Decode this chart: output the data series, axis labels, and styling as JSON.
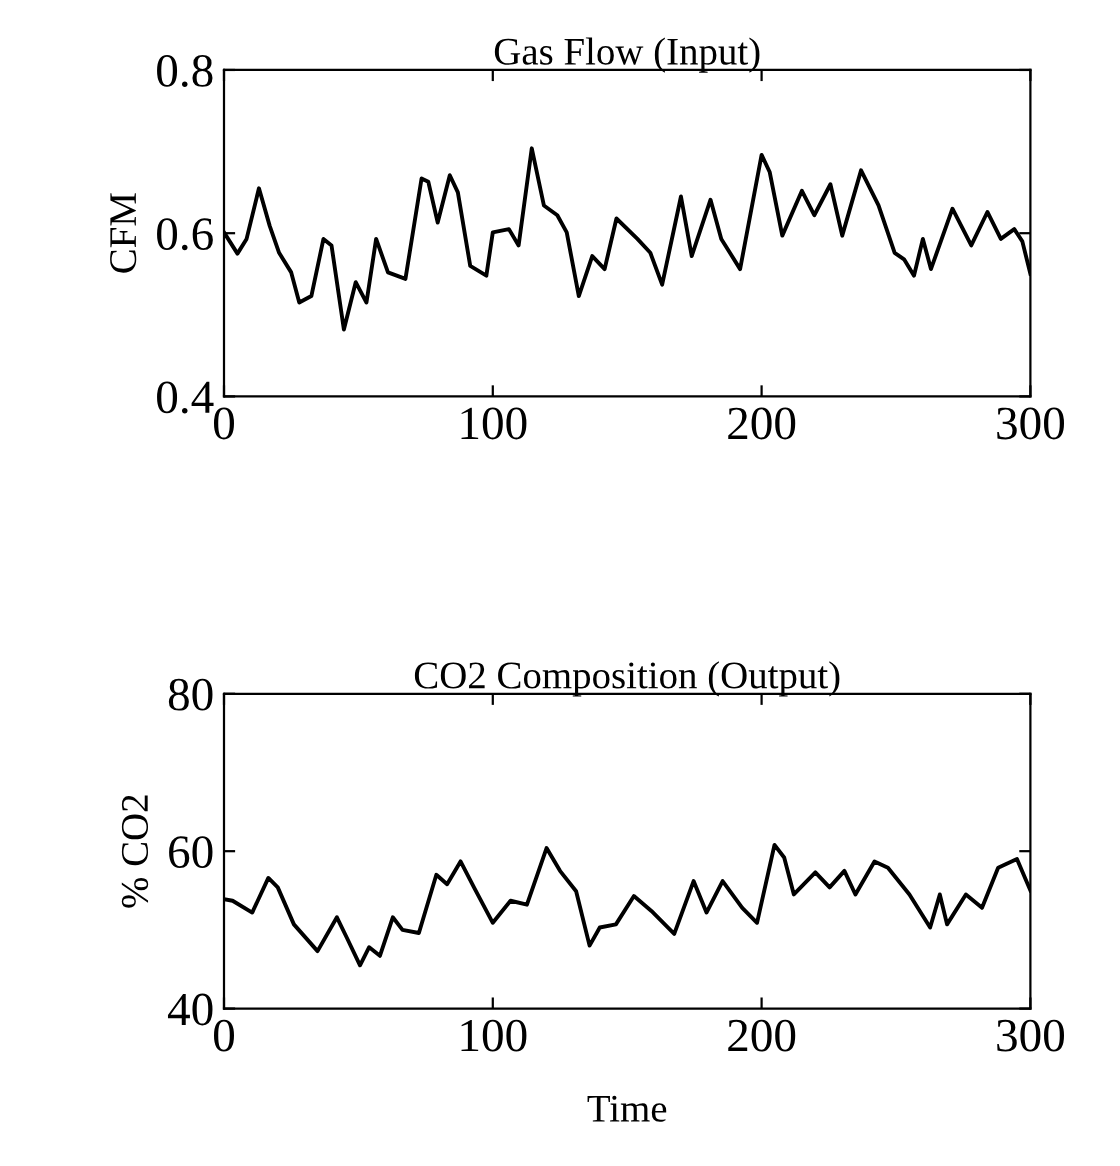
{
  "chart_data": [
    {
      "type": "line",
      "title": "Gas Flow (Input)",
      "ylabel": "CFM",
      "xlim": [
        0,
        300
      ],
      "ylim": [
        0.4,
        0.8
      ],
      "xticks": [
        0,
        100,
        200,
        300
      ],
      "yticks": [
        0.4,
        0.6,
        0.8
      ],
      "grid": false,
      "marker": "none",
      "line_style": "solid",
      "series": [
        {
          "color": "#000000",
          "x": [
            0,
            5,
            8.4,
            13,
            17,
            20.5,
            25,
            28,
            32.5,
            37,
            40,
            44.6,
            49,
            53,
            56.6,
            61,
            67.5,
            73.5,
            76,
            79.5,
            84,
            87,
            91.6,
            97.6,
            100,
            106,
            109.6,
            114.5,
            119,
            124,
            127.5,
            132,
            137,
            141.6,
            146,
            153.8,
            158.6,
            163,
            170,
            174,
            181,
            185,
            192,
            200,
            203,
            207.7,
            215,
            219.6,
            225.6,
            230,
            237,
            243.5,
            249.5,
            253,
            256.7,
            260,
            263,
            271,
            278,
            284,
            289,
            294,
            297,
            300
          ],
          "values": [
            0.601,
            0.575,
            0.593,
            0.655,
            0.609,
            0.576,
            0.552,
            0.515,
            0.523,
            0.593,
            0.585,
            0.482,
            0.54,
            0.515,
            0.593,
            0.552,
            0.544,
            0.667,
            0.663,
            0.613,
            0.671,
            0.65,
            0.56,
            0.548,
            0.601,
            0.605,
            0.585,
            0.704,
            0.634,
            0.622,
            0.601,
            0.523,
            0.572,
            0.556,
            0.618,
            0.593,
            0.576,
            0.537,
            0.645,
            0.572,
            0.641,
            0.593,
            0.556,
            0.696,
            0.675,
            0.597,
            0.652,
            0.622,
            0.66,
            0.597,
            0.677,
            0.634,
            0.576,
            0.568,
            0.548,
            0.593,
            0.556,
            0.63,
            0.585,
            0.626,
            0.593,
            0.605,
            0.59,
            0.55
          ]
        }
      ]
    },
    {
      "type": "line",
      "title": "CO2 Composition (Output)",
      "ylabel": "% CO2",
      "xlabel": "Time",
      "xlim": [
        0,
        300
      ],
      "ylim": [
        40,
        80
      ],
      "xticks": [
        0,
        100,
        200,
        300
      ],
      "yticks": [
        40,
        60,
        80
      ],
      "grid": false,
      "marker": "none",
      "line_style": "solid",
      "series": [
        {
          "color": "#000000",
          "x": [
            0,
            3.2,
            10.5,
            16.5,
            20,
            26,
            34.8,
            42,
            45.7,
            50.6,
            54,
            58,
            62.8,
            66.4,
            72.5,
            79,
            83,
            88,
            93,
            100,
            106.6,
            112.7,
            120,
            125,
            131,
            136,
            139.8,
            145.8,
            152.5,
            159,
            167.5,
            174.7,
            179.5,
            185.5,
            192.8,
            198.3,
            204.8,
            208.4,
            212,
            220,
            225.3,
            230.8,
            234.9,
            242,
            247,
            255,
            262.7,
            266.3,
            269,
            276,
            282,
            288,
            295,
            300
          ],
          "values": [
            53.9,
            53.7,
            52.2,
            56.6,
            55.4,
            50.7,
            47.3,
            51.6,
            49.0,
            45.5,
            47.8,
            46.7,
            51.6,
            50.0,
            49.6,
            57.0,
            55.8,
            58.7,
            55.4,
            50.9,
            53.7,
            53.2,
            60.4,
            57.5,
            54.9,
            48.0,
            50.3,
            50.7,
            54.3,
            52.4,
            49.5,
            56.2,
            52.2,
            56.2,
            52.8,
            50.9,
            60.8,
            59.2,
            54.5,
            57.3,
            55.4,
            57.5,
            54.5,
            58.7,
            57.9,
            54.5,
            50.3,
            54.5,
            50.7,
            54.5,
            52.8,
            57.9,
            59,
            55
          ]
        }
      ]
    }
  ]
}
